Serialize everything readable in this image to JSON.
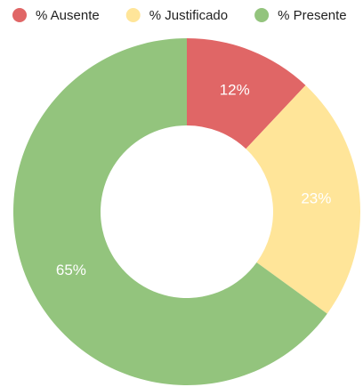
{
  "chart_data": {
    "type": "pie",
    "categories": [
      "% Ausente",
      "% Justificado",
      "% Presente"
    ],
    "values": [
      12,
      23,
      65
    ],
    "value_labels": [
      "12%",
      "23%",
      "65%"
    ],
    "colors": [
      "#e06666",
      "#ffe599",
      "#93c47d"
    ],
    "hole": true,
    "legend": "top"
  }
}
